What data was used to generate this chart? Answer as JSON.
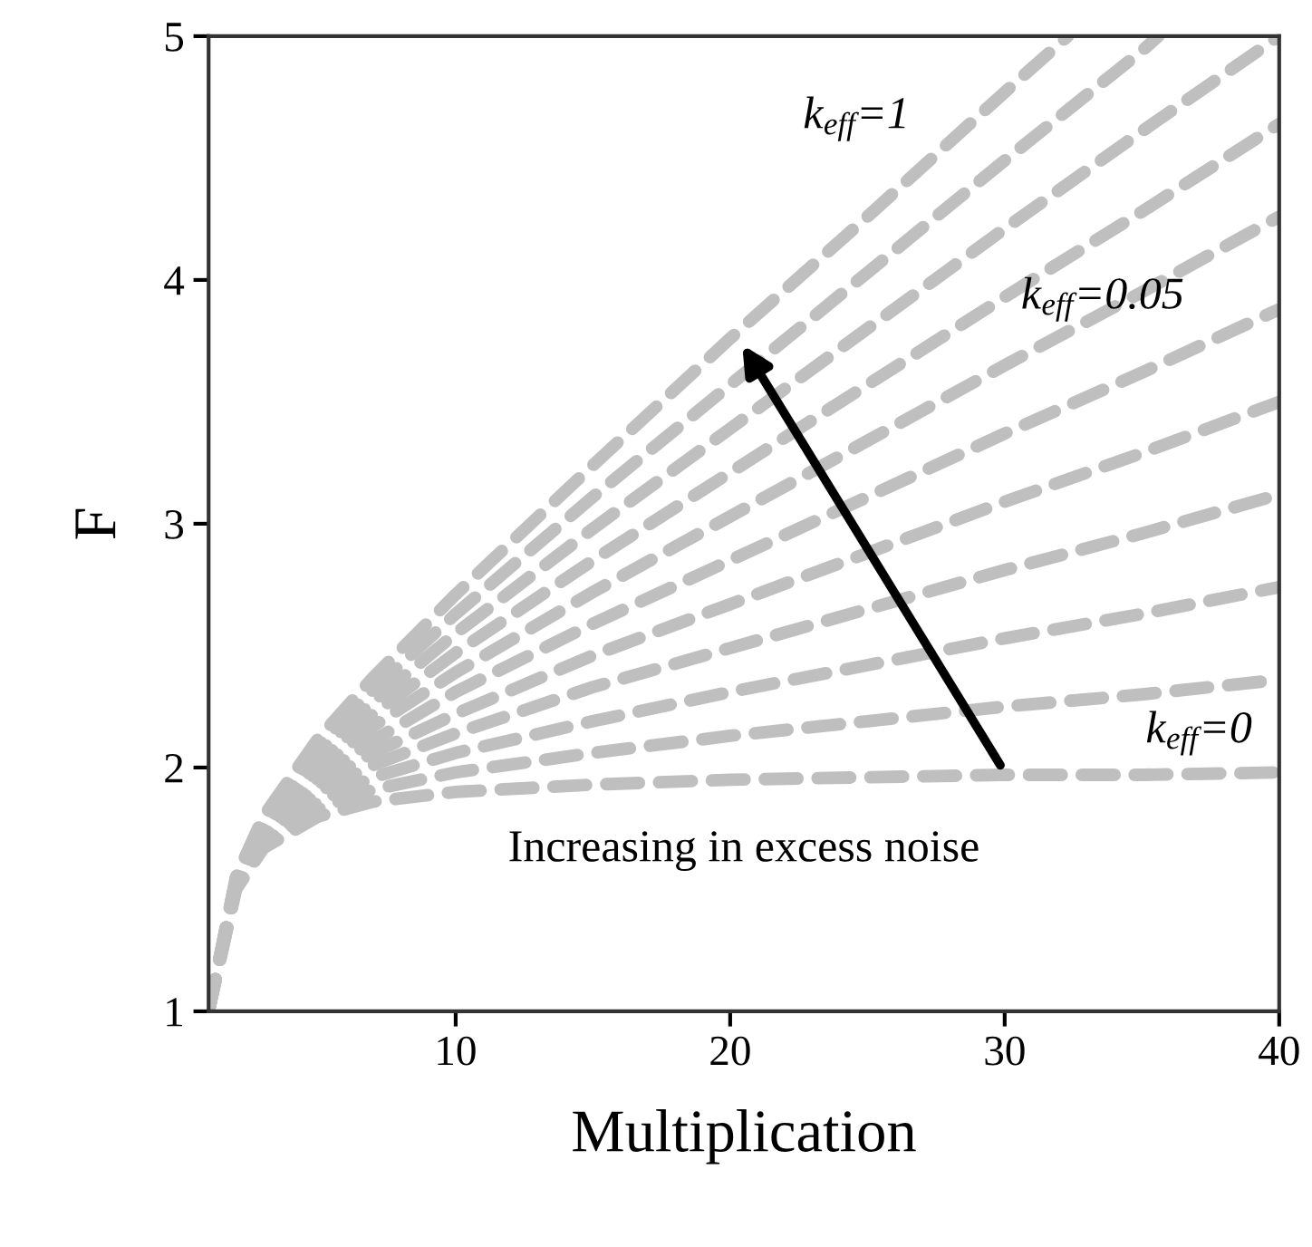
{
  "chart_data": {
    "type": "line",
    "xlabel": "Multiplication",
    "ylabel": "F",
    "x": [
      1,
      2,
      3,
      5,
      7,
      10,
      15,
      20,
      25,
      30,
      35,
      40
    ],
    "xlim": [
      1,
      40
    ],
    "xticks": [
      10,
      20,
      30,
      40
    ],
    "ylim": [
      1,
      5
    ],
    "yticks": [
      1,
      2,
      3,
      4,
      5
    ],
    "grid": false,
    "legend": false,
    "marker": "none",
    "line_style": "dashed",
    "series": [
      {
        "color": "#bfbfbf",
        "values": [
          1,
          1.5,
          1.67,
          1.8,
          1.86,
          1.9,
          1.93,
          1.95,
          1.96,
          1.97,
          1.97,
          1.98
        ]
      },
      {
        "color": "#bfbfbf",
        "values": [
          1,
          1.51,
          1.68,
          1.83,
          1.91,
          1.98,
          2.06,
          2.13,
          2.19,
          2.25,
          2.3,
          2.36
        ]
      },
      {
        "color": "#bfbfbf",
        "values": [
          1,
          1.51,
          1.69,
          1.86,
          1.96,
          2.06,
          2.19,
          2.31,
          2.42,
          2.53,
          2.63,
          2.74
        ]
      },
      {
        "color": "#bfbfbf",
        "values": [
          1,
          1.52,
          1.71,
          1.9,
          2.01,
          2.14,
          2.33,
          2.49,
          2.65,
          2.81,
          2.96,
          3.12
        ]
      },
      {
        "color": "#bfbfbf",
        "values": [
          1,
          1.52,
          1.72,
          1.93,
          2.06,
          2.22,
          2.46,
          2.67,
          2.88,
          3.09,
          3.29,
          3.5
        ]
      },
      {
        "color": "#bfbfbf",
        "values": [
          1,
          1.53,
          1.73,
          1.96,
          2.11,
          2.31,
          2.59,
          2.85,
          3.11,
          3.37,
          3.62,
          3.88
        ]
      },
      {
        "color": "#bfbfbf",
        "values": [
          1,
          1.53,
          1.75,
          1.99,
          2.17,
          2.39,
          2.72,
          3.03,
          3.34,
          3.65,
          3.95,
          4.26
        ]
      },
      {
        "color": "#bfbfbf",
        "values": [
          1,
          1.54,
          1.76,
          2.02,
          2.22,
          2.47,
          2.85,
          3.21,
          3.57,
          3.93,
          4.28,
          4.64
        ]
      },
      {
        "color": "#bfbfbf",
        "values": [
          1,
          1.54,
          1.77,
          2.06,
          2.27,
          2.55,
          2.98,
          3.39,
          3.8,
          4.21,
          4.61,
          5.0
        ]
      },
      {
        "color": "#bfbfbf",
        "x": [
          1,
          2,
          3,
          5,
          7,
          10,
          15,
          20,
          25,
          30,
          35,
          35.6
        ],
        "values": [
          1,
          1.55,
          1.79,
          2.09,
          2.32,
          2.63,
          3.11,
          3.57,
          4.03,
          4.49,
          4.94,
          5.0
        ]
      },
      {
        "color": "#bfbfbf",
        "x": [
          1,
          2,
          3,
          5,
          7,
          10,
          15,
          20,
          25,
          30,
          32.3
        ],
        "values": [
          1,
          1.55,
          1.8,
          2.12,
          2.37,
          2.71,
          3.24,
          3.76,
          4.26,
          4.77,
          5.0
        ]
      }
    ],
    "annotations": [
      "k$_{eff}$=1",
      "k$_{eff}$=0.05",
      "k$_{eff}$=0",
      "Increasing in excess noise"
    ]
  }
}
